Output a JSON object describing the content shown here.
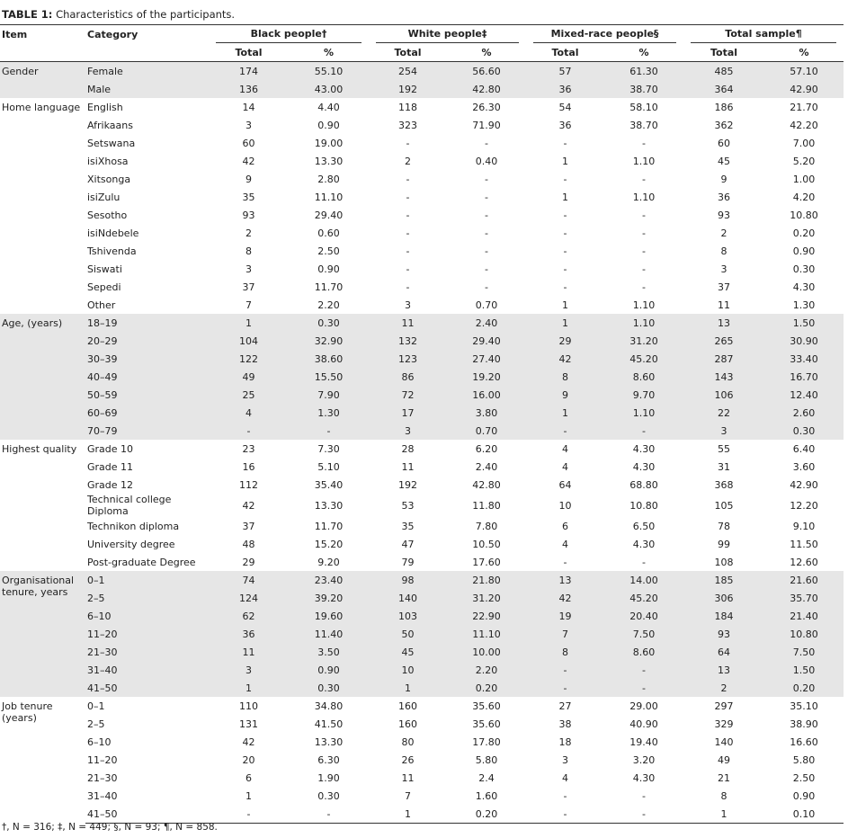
{
  "title": {
    "label": "TABLE 1:",
    "text": "Characteristics of the participants."
  },
  "table": {
    "headers": {
      "item": "Item",
      "category": "Category",
      "groups": [
        "Black people†",
        "White people‡",
        "Mixed-race people§",
        "Total sample¶"
      ],
      "sub": [
        "Total",
        "%"
      ]
    },
    "groups": [
      {
        "item": "Gender",
        "rows": [
          [
            "Female",
            "174",
            "55.10",
            "254",
            "56.60",
            "57",
            "61.30",
            "485",
            "57.10"
          ],
          [
            "Male",
            "136",
            "43.00",
            "192",
            "42.80",
            "36",
            "38.70",
            "364",
            "42.90"
          ]
        ]
      },
      {
        "item": "Home language",
        "rows": [
          [
            "English",
            "14",
            "4.40",
            "118",
            "26.30",
            "54",
            "58.10",
            "186",
            "21.70"
          ],
          [
            "Afrikaans",
            "3",
            "0.90",
            "323",
            "71.90",
            "36",
            "38.70",
            "362",
            "42.20"
          ],
          [
            "Setswana",
            "60",
            "19.00",
            "-",
            "-",
            "-",
            "-",
            "60",
            "7.00"
          ],
          [
            "isiXhosa",
            "42",
            "13.30",
            "2",
            "0.40",
            "1",
            "1.10",
            "45",
            "5.20"
          ],
          [
            "Xitsonga",
            "9",
            "2.80",
            "-",
            "-",
            "-",
            "-",
            "9",
            "1.00"
          ],
          [
            "isiZulu",
            "35",
            "11.10",
            "-",
            "-",
            "1",
            "1.10",
            "36",
            "4.20"
          ],
          [
            "Sesotho",
            "93",
            "29.40",
            "-",
            "-",
            "-",
            "-",
            "93",
            "10.80"
          ],
          [
            "isiNdebele",
            "2",
            "0.60",
            "-",
            "-",
            "-",
            "-",
            "2",
            "0.20"
          ],
          [
            "Tshivenda",
            "8",
            "2.50",
            "-",
            "-",
            "-",
            "-",
            "8",
            "0.90"
          ],
          [
            "Siswati",
            "3",
            "0.90",
            "-",
            "-",
            "-",
            "-",
            "3",
            "0.30"
          ],
          [
            "Sepedi",
            "37",
            "11.70",
            "-",
            "-",
            "-",
            "-",
            "37",
            "4.30"
          ],
          [
            "Other",
            "7",
            "2.20",
            "3",
            "0.70",
            "1",
            "1.10",
            "11",
            "1.30"
          ]
        ]
      },
      {
        "item": "Age, (years)",
        "rows": [
          [
            "18–19",
            "1",
            "0.30",
            "11",
            "2.40",
            "1",
            "1.10",
            "13",
            "1.50"
          ],
          [
            "20–29",
            "104",
            "32.90",
            "132",
            "29.40",
            "29",
            "31.20",
            "265",
            "30.90"
          ],
          [
            "30–39",
            "122",
            "38.60",
            "123",
            "27.40",
            "42",
            "45.20",
            "287",
            "33.40"
          ],
          [
            "40–49",
            "49",
            "15.50",
            "86",
            "19.20",
            "8",
            "8.60",
            "143",
            "16.70"
          ],
          [
            "50–59",
            "25",
            "7.90",
            "72",
            "16.00",
            "9",
            "9.70",
            "106",
            "12.40"
          ],
          [
            "60–69",
            "4",
            "1.30",
            "17",
            "3.80",
            "1",
            "1.10",
            "22",
            "2.60"
          ],
          [
            "70–79",
            "-",
            "-",
            "3",
            "0.70",
            "-",
            "-",
            "3",
            "0.30"
          ]
        ]
      },
      {
        "item": "Highest quality",
        "rows": [
          [
            "Grade 10",
            "23",
            "7.30",
            "28",
            "6.20",
            "4",
            "4.30",
            "55",
            "6.40"
          ],
          [
            "Grade 11",
            "16",
            "5.10",
            "11",
            "2.40",
            "4",
            "4.30",
            "31",
            "3.60"
          ],
          [
            "Grade 12",
            "112",
            "35.40",
            "192",
            "42.80",
            "64",
            "68.80",
            "368",
            "42.90"
          ],
          [
            "Technical college Diploma",
            "42",
            "13.30",
            "53",
            "11.80",
            "10",
            "10.80",
            "105",
            "12.20"
          ],
          [
            "Technikon diploma",
            "37",
            "11.70",
            "35",
            "7.80",
            "6",
            "6.50",
            "78",
            "9.10"
          ],
          [
            "University degree",
            "48",
            "15.20",
            "47",
            "10.50",
            "4",
            "4.30",
            "99",
            "11.50"
          ],
          [
            "Post-graduate Degree",
            "29",
            "9.20",
            "79",
            "17.60",
            "-",
            "-",
            "108",
            "12.60"
          ]
        ]
      },
      {
        "item": "Organisational tenure, years",
        "rows": [
          [
            "0–1",
            "74",
            "23.40",
            "98",
            "21.80",
            "13",
            "14.00",
            "185",
            "21.60"
          ],
          [
            "2–5",
            "124",
            "39.20",
            "140",
            "31.20",
            "42",
            "45.20",
            "306",
            "35.70"
          ],
          [
            "6–10",
            "62",
            "19.60",
            "103",
            "22.90",
            "19",
            "20.40",
            "184",
            "21.40"
          ],
          [
            "11–20",
            "36",
            "11.40",
            "50",
            "11.10",
            "7",
            "7.50",
            "93",
            "10.80"
          ],
          [
            "21–30",
            "11",
            "3.50",
            "45",
            "10.00",
            "8",
            "8.60",
            "64",
            "7.50"
          ],
          [
            "31–40",
            "3",
            "0.90",
            "10",
            "2.20",
            "-",
            "-",
            "13",
            "1.50"
          ],
          [
            "41–50",
            "1",
            "0.30",
            "1",
            "0.20",
            "-",
            "-",
            "2",
            "0.20"
          ]
        ]
      },
      {
        "item": "Job tenure (years)",
        "rows": [
          [
            "0–1",
            "110",
            "34.80",
            "160",
            "35.60",
            "27",
            "29.00",
            "297",
            "35.10"
          ],
          [
            "2–5",
            "131",
            "41.50",
            "160",
            "35.60",
            "38",
            "40.90",
            "329",
            "38.90"
          ],
          [
            "6–10",
            "42",
            "13.30",
            "80",
            "17.80",
            "18",
            "19.40",
            "140",
            "16.60"
          ],
          [
            "11–20",
            "20",
            "6.30",
            "26",
            "5.80",
            "3",
            "3.20",
            "49",
            "5.80"
          ],
          [
            "21–30",
            "6",
            "1.90",
            "11",
            "2.4",
            "4",
            "4.30",
            "21",
            "2.50"
          ],
          [
            "31–40",
            "1",
            "0.30",
            "7",
            "1.60",
            "-",
            "-",
            "8",
            "0.90"
          ],
          [
            "41–50",
            "-",
            "-",
            "1",
            "0.20",
            "-",
            "-",
            "1",
            "0.10"
          ]
        ]
      }
    ]
  },
  "footnote": "†, N = 316; ‡, N = 449; §, N = 93; ¶, N = 858."
}
